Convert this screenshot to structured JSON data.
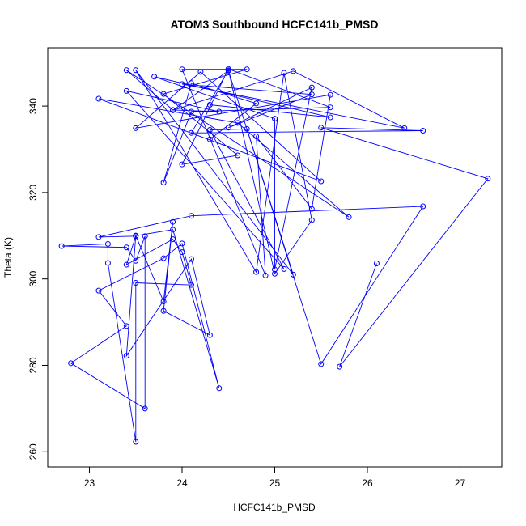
{
  "chart_data": {
    "type": "line",
    "title": "ATOM3 Southbound HCFC141b_PMSD",
    "xlabel": "HCFC141b_PMSD",
    "ylabel": "Theta (K)",
    "xlim": [
      22.55,
      27.45
    ],
    "ylim": [
      256.5,
      353.5
    ],
    "xticks": [
      23,
      24,
      25,
      26,
      27
    ],
    "yticks": [
      260,
      280,
      300,
      320,
      340
    ],
    "grid": false,
    "legend": "none",
    "marker": "open-circle",
    "color": "#0000ff",
    "points": [
      [
        26.1,
        303.6
      ],
      [
        25.7,
        279.7
      ],
      [
        27.3,
        323.2
      ],
      [
        25.5,
        335.0
      ],
      [
        26.6,
        334.3
      ],
      [
        24.1,
        333.8
      ],
      [
        24.5,
        348.3
      ],
      [
        25.0,
        301.2
      ],
      [
        25.4,
        313.6
      ],
      [
        25.1,
        347.7
      ],
      [
        24.8,
        301.6
      ],
      [
        23.5,
        348.3
      ],
      [
        25.2,
        301.0
      ],
      [
        24.7,
        334.7
      ],
      [
        24.3,
        334.5
      ],
      [
        25.1,
        302.3
      ],
      [
        23.4,
        343.5
      ],
      [
        24.4,
        338.7
      ],
      [
        23.9,
        339.1
      ],
      [
        23.4,
        348.3
      ],
      [
        25.8,
        314.3
      ],
      [
        24.6,
        336.1
      ],
      [
        23.1,
        341.7
      ],
      [
        25.5,
        322.6
      ],
      [
        24.2,
        347.9
      ],
      [
        23.5,
        334.9
      ],
      [
        25.6,
        342.6
      ],
      [
        25.4,
        316.2
      ],
      [
        24.8,
        333.0
      ],
      [
        24.9,
        300.8
      ],
      [
        24.0,
        348.5
      ],
      [
        24.7,
        348.5
      ],
      [
        23.8,
        342.8
      ],
      [
        24.6,
        328.6
      ],
      [
        24.0,
        326.5
      ],
      [
        24.5,
        348.6
      ],
      [
        25.6,
        339.7
      ],
      [
        24.1,
        338.7
      ],
      [
        23.8,
        322.3
      ],
      [
        24.1,
        345.3
      ],
      [
        24.8,
        340.6
      ],
      [
        24.3,
        332.3
      ],
      [
        24.3,
        340.3
      ],
      [
        25.6,
        337.4
      ],
      [
        23.7,
        346.8
      ],
      [
        25.0,
        337.1
      ],
      [
        25.0,
        302.2
      ],
      [
        25.4,
        344.3
      ],
      [
        24.5,
        335.0
      ],
      [
        25.4,
        342.7
      ],
      [
        24.0,
        345.1
      ],
      [
        26.4,
        334.9
      ],
      [
        25.2,
        348.1
      ],
      [
        23.9,
        339.0
      ],
      [
        24.5,
        348.2
      ],
      [
        25.5,
        280.3
      ],
      [
        26.6,
        316.8
      ],
      [
        24.1,
        314.6
      ],
      [
        23.1,
        309.7
      ],
      [
        23.5,
        309.9
      ],
      [
        23.4,
        303.3
      ],
      [
        23.9,
        309.2
      ],
      [
        24.0,
        306.2
      ],
      [
        24.1,
        298.6
      ],
      [
        23.5,
        299.1
      ],
      [
        23.5,
        262.3
      ],
      [
        23.2,
        303.7
      ],
      [
        23.2,
        308.1
      ],
      [
        22.7,
        307.6
      ],
      [
        23.4,
        307.3
      ],
      [
        23.5,
        304.2
      ],
      [
        23.6,
        309.9
      ],
      [
        23.6,
        270.0
      ],
      [
        22.8,
        280.5
      ],
      [
        23.4,
        289.1
      ],
      [
        23.1,
        297.3
      ],
      [
        23.8,
        304.8
      ],
      [
        24.0,
        308.2
      ],
      [
        24.4,
        274.7
      ],
      [
        23.9,
        311.4
      ],
      [
        23.5,
        310.0
      ],
      [
        23.8,
        294.8
      ],
      [
        23.9,
        313.2
      ],
      [
        23.8,
        292.6
      ],
      [
        24.3,
        287.0
      ],
      [
        24.1,
        304.6
      ],
      [
        23.4,
        282.2
      ],
      [
        23.5,
        310.0
      ]
    ]
  }
}
